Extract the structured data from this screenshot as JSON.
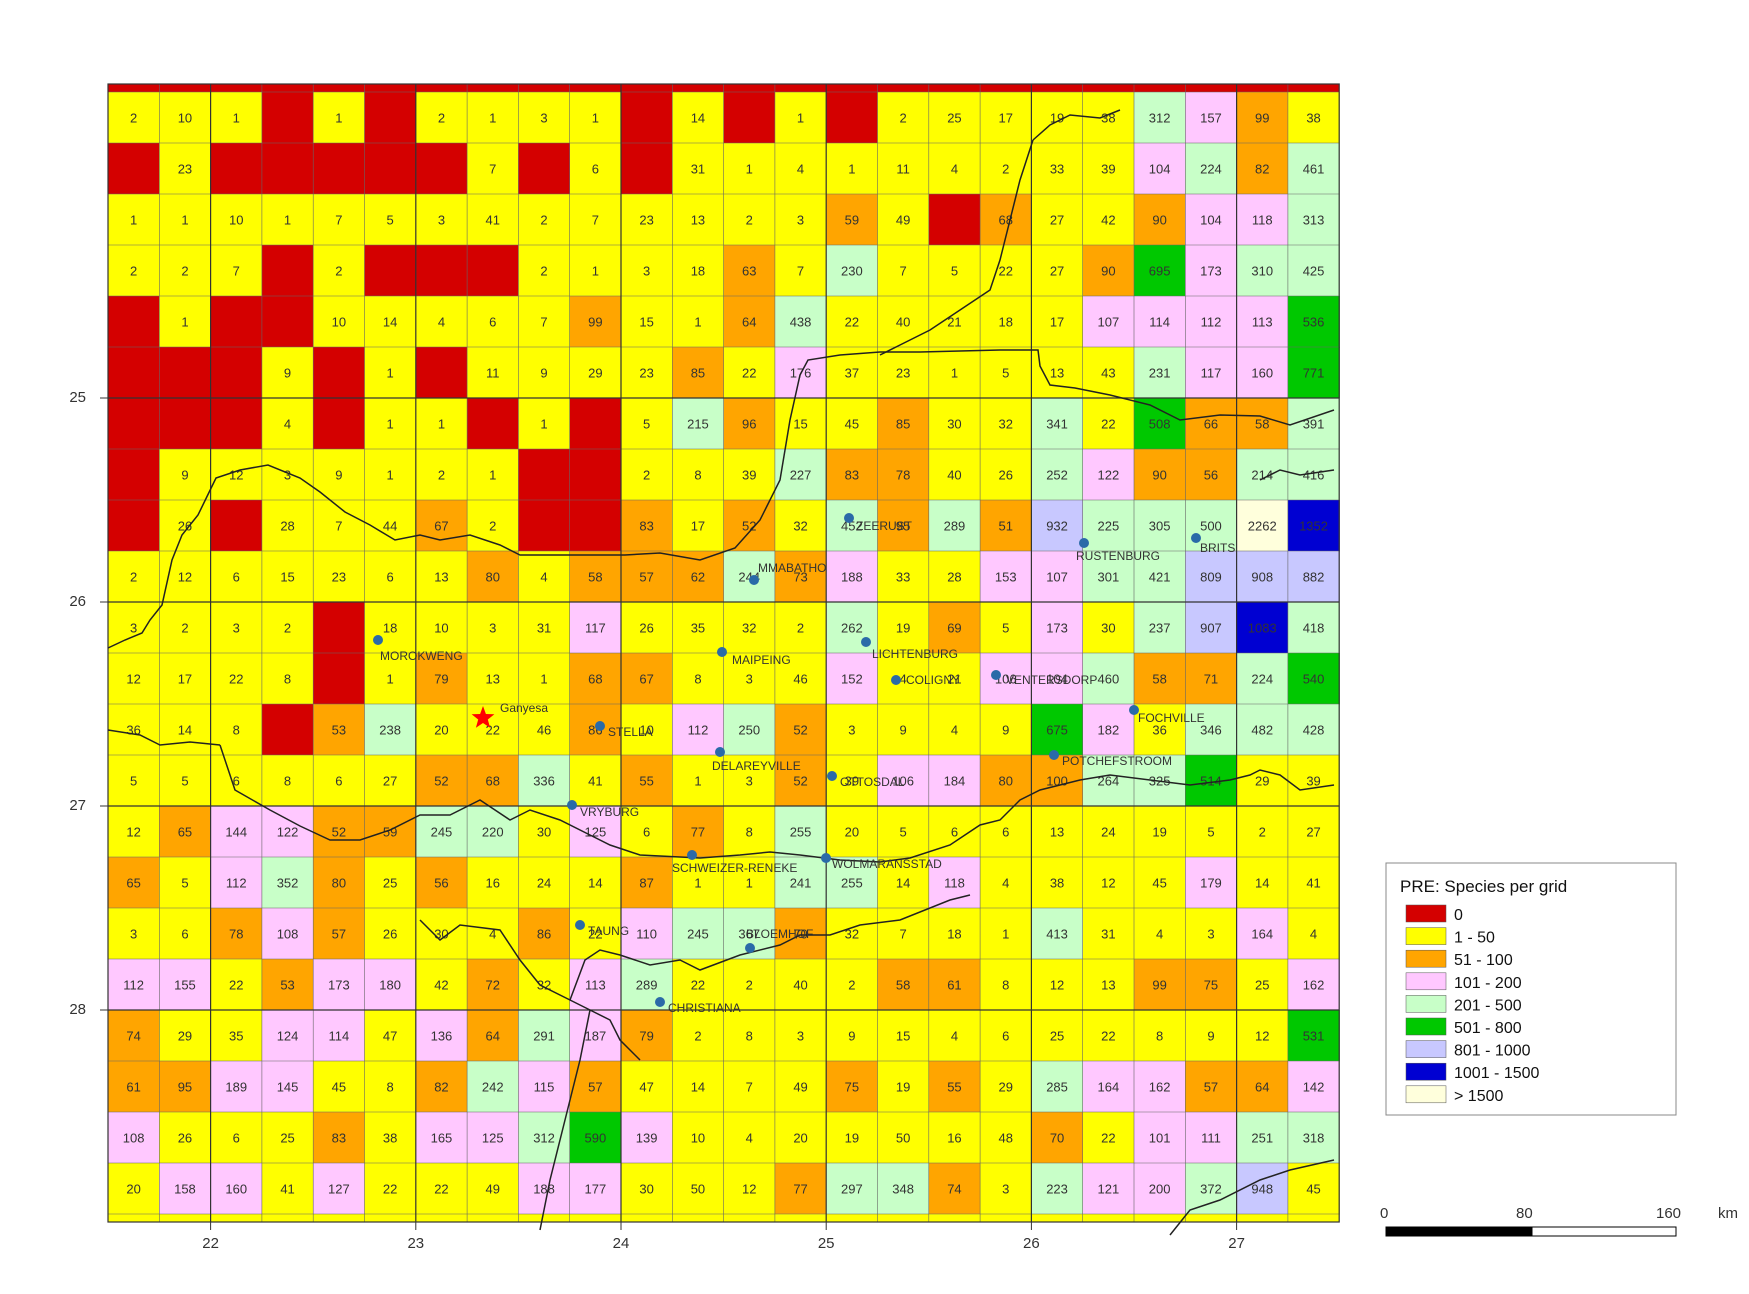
{
  "map": {
    "grid_values": [
      [
        "2",
        "10",
        "1",
        "",
        "1",
        "",
        "2",
        "1",
        "3",
        "1",
        "",
        "14",
        "",
        "1",
        "",
        "2",
        "25",
        "17",
        "19",
        "38",
        "312",
        "157",
        "99",
        "38"
      ],
      [
        "",
        "23",
        "",
        "",
        "",
        "",
        "",
        "7",
        "",
        "6",
        "",
        "31",
        "1",
        "4",
        "1",
        "11",
        "4",
        "2",
        "33",
        "39",
        "104",
        "224",
        "82",
        "461"
      ],
      [
        "1",
        "1",
        "10",
        "1",
        "7",
        "5",
        "3",
        "41",
        "2",
        "7",
        "23",
        "13",
        "2",
        "3",
        "59",
        "49",
        "",
        "68",
        "27",
        "42",
        "90",
        "104",
        "118",
        "313"
      ],
      [
        "2",
        "2",
        "7",
        "",
        "2",
        "",
        "",
        "",
        "2",
        "1",
        "3",
        "18",
        "63",
        "7",
        "230",
        "7",
        "5",
        "22",
        "27",
        "90",
        "695",
        "173",
        "310",
        "425"
      ],
      [
        "",
        "1",
        "",
        "",
        "10",
        "14",
        "4",
        "6",
        "7",
        "99",
        "15",
        "1",
        "64",
        "438",
        "22",
        "40",
        "21",
        "18",
        "17",
        "107",
        "114",
        "112",
        "113",
        "536"
      ],
      [
        "",
        "",
        "",
        "9",
        "",
        "1",
        "",
        "11",
        "9",
        "29",
        "23",
        "85",
        "22",
        "176",
        "37",
        "23",
        "1",
        "5",
        "13",
        "43",
        "231",
        "117",
        "160",
        "771"
      ],
      [
        "",
        "",
        "",
        "4",
        "",
        "1",
        "1",
        "",
        "1",
        "",
        "5",
        "215",
        "96",
        "15",
        "45",
        "85",
        "30",
        "32",
        "341",
        "22",
        "508",
        "66",
        "58",
        "391"
      ],
      [
        "",
        "9",
        "12",
        "3",
        "9",
        "1",
        "2",
        "1",
        "",
        "",
        "2",
        "8",
        "39",
        "227",
        "83",
        "78",
        "40",
        "26",
        "252",
        "122",
        "90",
        "56",
        "214",
        "416"
      ],
      [
        "",
        "26",
        "",
        "28",
        "7",
        "44",
        "67",
        "2",
        "",
        "",
        "83",
        "17",
        "52",
        "32",
        "452",
        "95",
        "289",
        "51",
        "932",
        "225",
        "305",
        "500",
        "2262",
        "1352"
      ],
      [
        "2",
        "12",
        "6",
        "15",
        "23",
        "6",
        "13",
        "80",
        "4",
        "58",
        "57",
        "62",
        "244",
        "73",
        "188",
        "33",
        "28",
        "153",
        "107",
        "301",
        "421",
        "809",
        "908",
        "882"
      ],
      [
        "3",
        "2",
        "3",
        "2",
        "",
        "18",
        "10",
        "3",
        "31",
        "117",
        "26",
        "35",
        "32",
        "2",
        "262",
        "19",
        "69",
        "5",
        "173",
        "30",
        "237",
        "907",
        "1083",
        "418"
      ],
      [
        "12",
        "17",
        "22",
        "8",
        "",
        "1",
        "79",
        "13",
        "1",
        "68",
        "67",
        "8",
        "3",
        "46",
        "152",
        "4",
        "21",
        "106",
        "104",
        "460",
        "58",
        "71",
        "224",
        "540"
      ],
      [
        "36",
        "14",
        "8",
        "",
        "53",
        "238",
        "20",
        "22",
        "46",
        "86",
        "10",
        "112",
        "250",
        "52",
        "3",
        "9",
        "4",
        "9",
        "675",
        "182",
        "36",
        "346",
        "482",
        "428"
      ],
      [
        "5",
        "5",
        "6",
        "8",
        "6",
        "27",
        "52",
        "68",
        "336",
        "41",
        "55",
        "1",
        "3",
        "52",
        "39",
        "106",
        "184",
        "80",
        "100",
        "264",
        "325",
        "514",
        "29",
        "39"
      ],
      [
        "12",
        "65",
        "144",
        "122",
        "52",
        "59",
        "245",
        "220",
        "30",
        "125",
        "6",
        "77",
        "8",
        "255",
        "20",
        "5",
        "6",
        "6",
        "13",
        "24",
        "19",
        "5",
        "2",
        "27"
      ],
      [
        "65",
        "5",
        "112",
        "352",
        "80",
        "25",
        "56",
        "16",
        "24",
        "14",
        "87",
        "1",
        "1",
        "241",
        "255",
        "14",
        "118",
        "4",
        "38",
        "12",
        "45",
        "179",
        "14",
        "41"
      ],
      [
        "3",
        "6",
        "78",
        "108",
        "57",
        "26",
        "30",
        "4",
        "86",
        "22",
        "110",
        "245",
        "367",
        "70",
        "32",
        "7",
        "18",
        "1",
        "413",
        "31",
        "4",
        "3",
        "164",
        "4"
      ],
      [
        "112",
        "155",
        "22",
        "53",
        "173",
        "180",
        "42",
        "72",
        "32",
        "113",
        "289",
        "22",
        "2",
        "40",
        "2",
        "58",
        "61",
        "8",
        "12",
        "13",
        "99",
        "75",
        "25",
        "162"
      ],
      [
        "74",
        "29",
        "35",
        "124",
        "114",
        "47",
        "136",
        "64",
        "291",
        "187",
        "79",
        "2",
        "8",
        "3",
        "9",
        "15",
        "4",
        "6",
        "25",
        "22",
        "8",
        "9",
        "12",
        "531"
      ],
      [
        "61",
        "95",
        "189",
        "145",
        "45",
        "8",
        "82",
        "242",
        "115",
        "57",
        "47",
        "14",
        "7",
        "49",
        "75",
        "19",
        "55",
        "29",
        "285",
        "164",
        "162",
        "57",
        "64",
        "142"
      ],
      [
        "108",
        "26",
        "6",
        "25",
        "83",
        "38",
        "165",
        "125",
        "312",
        "590",
        "139",
        "10",
        "4",
        "20",
        "19",
        "50",
        "16",
        "48",
        "70",
        "22",
        "101",
        "111",
        "251",
        "318"
      ],
      [
        "20",
        "158",
        "160",
        "41",
        "127",
        "22",
        "22",
        "49",
        "188",
        "177",
        "30",
        "50",
        "12",
        "77",
        "297",
        "348",
        "74",
        "3",
        "223",
        "121",
        "200",
        "372",
        "948",
        "45"
      ]
    ],
    "x_tick_labels": [
      "22",
      "23",
      "24",
      "25",
      "26",
      "27"
    ],
    "y_tick_labels": [
      "25",
      "26",
      "27",
      "28"
    ],
    "towns": [
      {
        "name": "MOROKWENG"
      },
      {
        "name": "STELLA"
      },
      {
        "name": "VRYBURG"
      },
      {
        "name": "TAUNG"
      },
      {
        "name": "CHRISTIANA"
      },
      {
        "name": "BLOEMHOF"
      },
      {
        "name": "SCHWEIZER-RENEKE"
      },
      {
        "name": "WOLMARANSSTAD"
      },
      {
        "name": "DELAREYVILLE"
      },
      {
        "name": "OTTOSDAL"
      },
      {
        "name": "MAIPEING"
      },
      {
        "name": "MMABATHO"
      },
      {
        "name": "ZEERUST"
      },
      {
        "name": "LICHTENBURG"
      },
      {
        "name": "COLIGNY"
      },
      {
        "name": "VENTERSDORP"
      },
      {
        "name": "FOCHVILLE"
      },
      {
        "name": "POTCHEFSTROOM"
      },
      {
        "name": "RUSTENBURG"
      },
      {
        "name": "BRITS"
      }
    ],
    "special_site": {
      "name": "Ganyesa",
      "icon": "red-star-icon"
    }
  },
  "legend": {
    "title": "PRE: Species per grid",
    "items": [
      {
        "label": "0",
        "color": "#d40000"
      },
      {
        "label": "1 - 50",
        "color": "#ffff00"
      },
      {
        "label": "51 - 100",
        "color": "#ffa500"
      },
      {
        "label": "101 - 200",
        "color": "#ffc8ff"
      },
      {
        "label": "201 - 500",
        "color": "#c8ffc8"
      },
      {
        "label": "501 - 800",
        "color": "#00c800"
      },
      {
        "label": "801 - 1000",
        "color": "#c8c8ff"
      },
      {
        "label": "1001 - 1500",
        "color": "#0000d2"
      },
      {
        "label": "> 1500",
        "color": "#ffffdc"
      }
    ]
  },
  "scalebar": {
    "tick_labels": [
      "0",
      "80",
      "160"
    ],
    "unit": "km"
  },
  "colors": {
    "grid_line": "#666666",
    "major_grid_line": "#333333",
    "border_line": "#222222",
    "town_dot": "#2a6aa8",
    "star": "#ff0000"
  }
}
